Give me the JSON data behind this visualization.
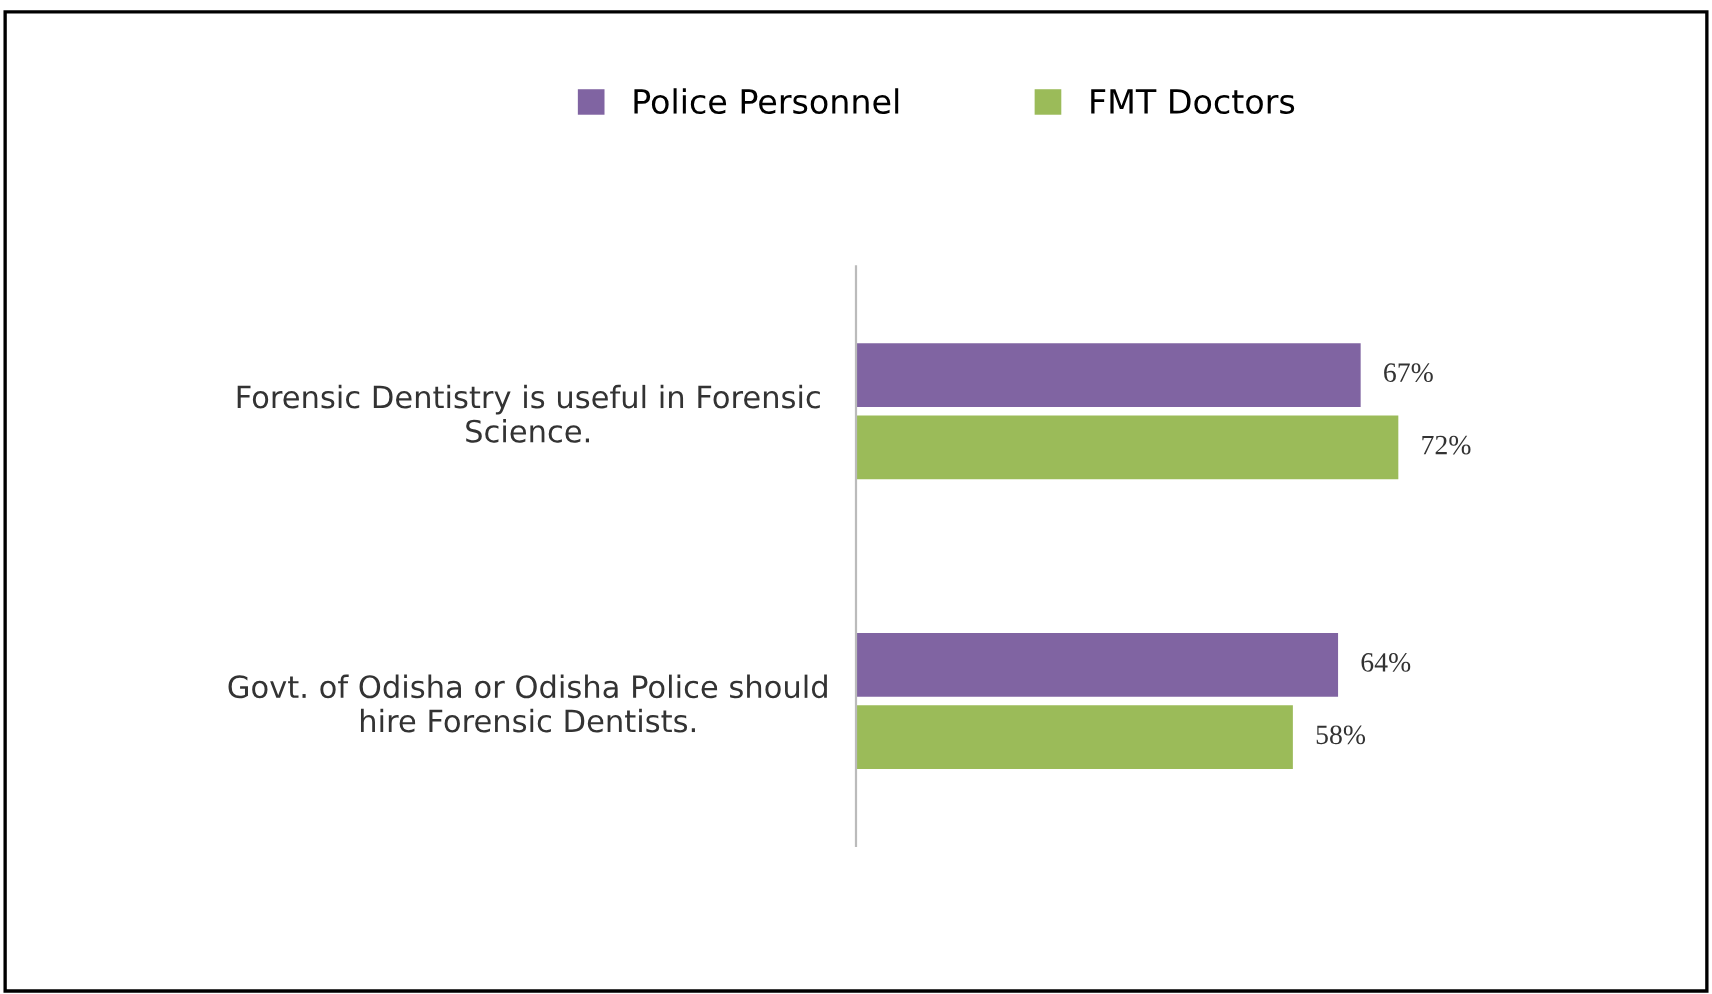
{
  "chart_data": {
    "type": "bar",
    "orientation": "horizontal",
    "categories": [
      "Forensic Dentistry is useful in Forensic\nScience.",
      "Govt. of Odisha or Odisha Police should\nhire Forensic Dentists."
    ],
    "series": [
      {
        "name": "Police Personnel",
        "color": "#8064a2",
        "values": [
          67,
          64
        ],
        "value_labels": [
          "67%",
          "64%"
        ]
      },
      {
        "name": "FMT Doctors",
        "color": "#9bbb59",
        "values": [
          72,
          58
        ],
        "value_labels": [
          "72%",
          "58%"
        ]
      }
    ],
    "legend": "top",
    "grid": false
  }
}
